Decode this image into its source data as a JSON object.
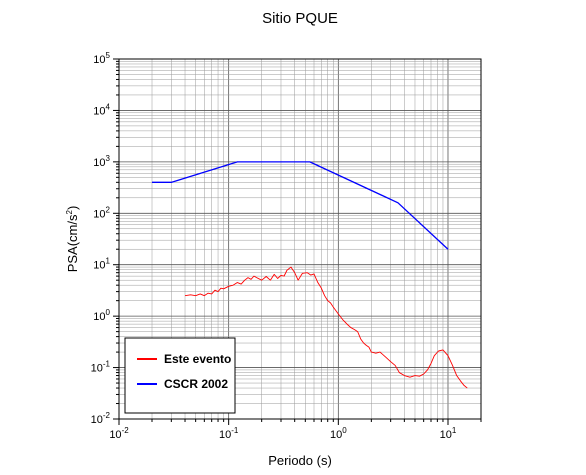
{
  "chart_data": {
    "type": "line",
    "title": "Sitio PQUE",
    "xlabel": "Periodo (s)",
    "ylabel_main": "PSA(cm/s",
    "ylabel_sup": "2",
    "ylabel_close": ")",
    "xscale": "log",
    "yscale": "log",
    "xlim": [
      0.01,
      20
    ],
    "ylim": [
      0.01,
      100000
    ],
    "grid": true,
    "legend_placement": "bottom-left",
    "x_ticks": [
      {
        "base": "10",
        "exp": "-2",
        "value": 0.01
      },
      {
        "base": "10",
        "exp": "-1",
        "value": 0.1
      },
      {
        "base": "10",
        "exp": "0",
        "value": 1
      },
      {
        "base": "10",
        "exp": "1",
        "value": 10
      }
    ],
    "y_ticks": [
      {
        "base": "10",
        "exp": "-2",
        "value": 0.01
      },
      {
        "base": "10",
        "exp": "-1",
        "value": 0.1
      },
      {
        "base": "10",
        "exp": "0",
        "value": 1
      },
      {
        "base": "10",
        "exp": "1",
        "value": 10
      },
      {
        "base": "10",
        "exp": "2",
        "value": 100
      },
      {
        "base": "10",
        "exp": "3",
        "value": 1000
      },
      {
        "base": "10",
        "exp": "4",
        "value": 10000
      },
      {
        "base": "10",
        "exp": "5",
        "value": 100000
      }
    ],
    "series": [
      {
        "name": "Este evento",
        "color": "#ff0000",
        "points": [
          [
            0.04,
            2.5
          ],
          [
            0.045,
            2.6
          ],
          [
            0.05,
            2.5
          ],
          [
            0.055,
            2.7
          ],
          [
            0.06,
            2.5
          ],
          [
            0.065,
            2.8
          ],
          [
            0.07,
            2.7
          ],
          [
            0.075,
            3.2
          ],
          [
            0.08,
            3.0
          ],
          [
            0.085,
            3.5
          ],
          [
            0.09,
            3.4
          ],
          [
            0.1,
            3.8
          ],
          [
            0.11,
            4.0
          ],
          [
            0.12,
            4.5
          ],
          [
            0.13,
            4.2
          ],
          [
            0.14,
            5.0
          ],
          [
            0.15,
            5.6
          ],
          [
            0.16,
            5.2
          ],
          [
            0.17,
            6.0
          ],
          [
            0.18,
            5.6
          ],
          [
            0.2,
            5.0
          ],
          [
            0.22,
            5.9
          ],
          [
            0.24,
            5.0
          ],
          [
            0.26,
            6.5
          ],
          [
            0.28,
            5.4
          ],
          [
            0.3,
            6.2
          ],
          [
            0.32,
            6.0
          ],
          [
            0.34,
            7.8
          ],
          [
            0.37,
            9.0
          ],
          [
            0.4,
            7.0
          ],
          [
            0.43,
            5.0
          ],
          [
            0.47,
            6.8
          ],
          [
            0.52,
            7.0
          ],
          [
            0.56,
            6.3
          ],
          [
            0.6,
            6.6
          ],
          [
            0.65,
            4.5
          ],
          [
            0.7,
            3.5
          ],
          [
            0.75,
            2.5
          ],
          [
            0.8,
            2.0
          ],
          [
            0.85,
            1.8
          ],
          [
            0.9,
            1.5
          ],
          [
            1.0,
            1.1
          ],
          [
            1.1,
            0.85
          ],
          [
            1.2,
            0.7
          ],
          [
            1.3,
            0.6
          ],
          [
            1.4,
            0.55
          ],
          [
            1.5,
            0.5
          ],
          [
            1.6,
            0.36
          ],
          [
            1.7,
            0.3
          ],
          [
            1.8,
            0.27
          ],
          [
            1.9,
            0.25
          ],
          [
            2.0,
            0.2
          ],
          [
            2.2,
            0.19
          ],
          [
            2.4,
            0.2
          ],
          [
            2.7,
            0.16
          ],
          [
            3.0,
            0.13
          ],
          [
            3.3,
            0.11
          ],
          [
            3.6,
            0.08
          ],
          [
            4.0,
            0.07
          ],
          [
            4.5,
            0.065
          ],
          [
            5.0,
            0.07
          ],
          [
            5.5,
            0.068
          ],
          [
            6.0,
            0.075
          ],
          [
            6.5,
            0.09
          ],
          [
            7.0,
            0.12
          ],
          [
            7.5,
            0.17
          ],
          [
            8.2,
            0.21
          ],
          [
            9.0,
            0.22
          ],
          [
            10.0,
            0.17
          ],
          [
            11.0,
            0.11
          ],
          [
            12.0,
            0.07
          ],
          [
            13.0,
            0.055
          ],
          [
            14.0,
            0.045
          ],
          [
            15.0,
            0.04
          ]
        ]
      },
      {
        "name": "CSCR 2002",
        "color": "#0000ff",
        "points": [
          [
            0.02,
            400
          ],
          [
            0.03,
            400
          ],
          [
            0.12,
            1000
          ],
          [
            0.55,
            1000
          ],
          [
            3.5,
            160
          ],
          [
            10.0,
            20
          ]
        ]
      }
    ]
  }
}
